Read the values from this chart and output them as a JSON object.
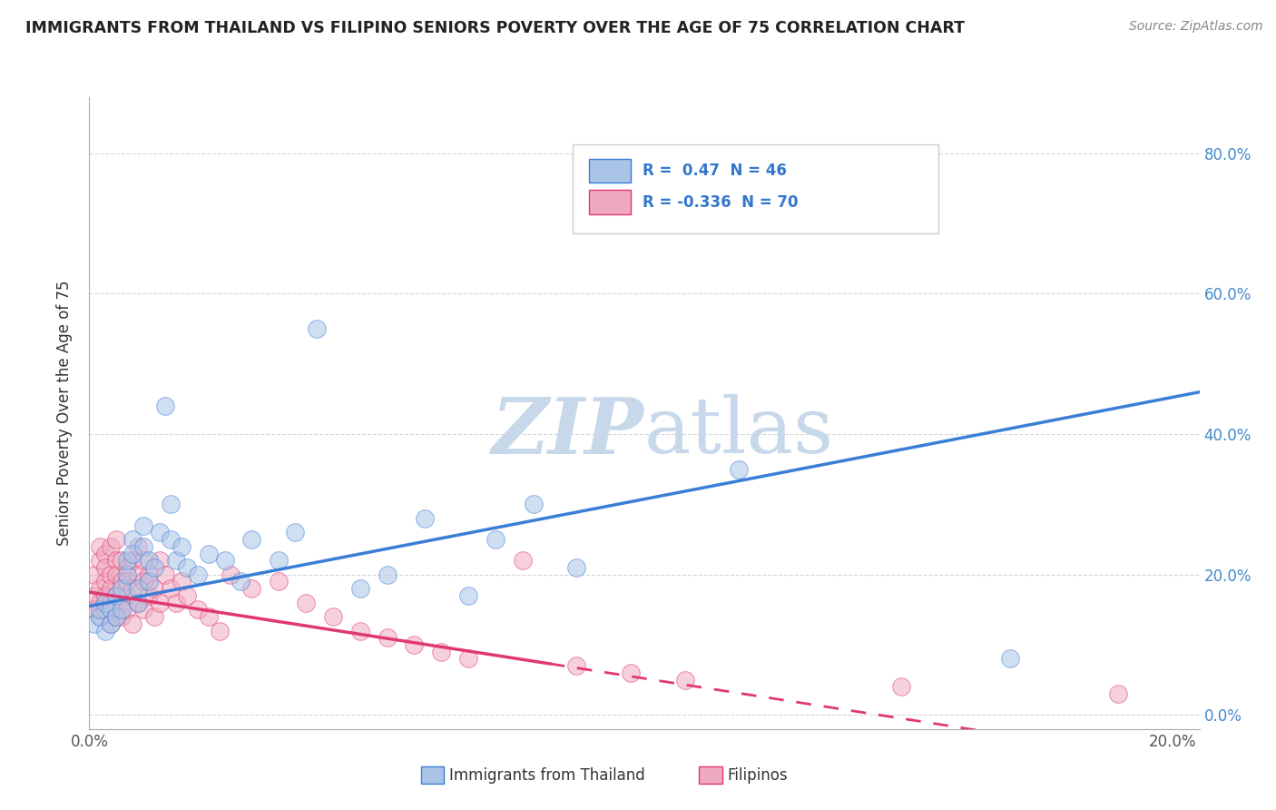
{
  "title": "IMMIGRANTS FROM THAILAND VS FILIPINO SENIORS POVERTY OVER THE AGE OF 75 CORRELATION CHART",
  "source": "Source: ZipAtlas.com",
  "ylabel": "Seniors Poverty Over the Age of 75",
  "xlim": [
    0.0,
    0.205
  ],
  "ylim": [
    -0.02,
    0.88
  ],
  "r_thailand": 0.47,
  "n_thailand": 46,
  "r_filipinos": -0.336,
  "n_filipinos": 70,
  "color_thailand": "#aac4e8",
  "color_filipinos": "#f0aac0",
  "line_color_thailand": "#3a7fd5",
  "line_color_filipinos": "#e03870",
  "watermark_zip": "ZIP",
  "watermark_atlas": "atlas",
  "watermark_color": "#c8d8eb",
  "background_color": "#ffffff",
  "thailand_x": [
    0.001,
    0.002,
    0.002,
    0.003,
    0.003,
    0.004,
    0.004,
    0.005,
    0.005,
    0.006,
    0.006,
    0.007,
    0.007,
    0.008,
    0.008,
    0.009,
    0.009,
    0.01,
    0.01,
    0.011,
    0.011,
    0.012,
    0.013,
    0.014,
    0.015,
    0.015,
    0.016,
    0.017,
    0.018,
    0.02,
    0.022,
    0.025,
    0.028,
    0.03,
    0.035,
    0.038,
    0.042,
    0.05,
    0.055,
    0.062,
    0.07,
    0.075,
    0.082,
    0.09,
    0.12,
    0.17
  ],
  "thailand_y": [
    0.13,
    0.14,
    0.15,
    0.12,
    0.16,
    0.15,
    0.13,
    0.17,
    0.14,
    0.18,
    0.15,
    0.2,
    0.22,
    0.25,
    0.23,
    0.16,
    0.18,
    0.27,
    0.24,
    0.19,
    0.22,
    0.21,
    0.26,
    0.44,
    0.3,
    0.25,
    0.22,
    0.24,
    0.21,
    0.2,
    0.23,
    0.22,
    0.19,
    0.25,
    0.22,
    0.26,
    0.55,
    0.18,
    0.2,
    0.28,
    0.17,
    0.25,
    0.3,
    0.21,
    0.35,
    0.08
  ],
  "filipinos_x": [
    0.001,
    0.001,
    0.001,
    0.002,
    0.002,
    0.002,
    0.002,
    0.002,
    0.003,
    0.003,
    0.003,
    0.003,
    0.003,
    0.004,
    0.004,
    0.004,
    0.004,
    0.004,
    0.005,
    0.005,
    0.005,
    0.005,
    0.005,
    0.006,
    0.006,
    0.006,
    0.006,
    0.007,
    0.007,
    0.007,
    0.007,
    0.008,
    0.008,
    0.008,
    0.009,
    0.009,
    0.009,
    0.01,
    0.01,
    0.01,
    0.011,
    0.011,
    0.012,
    0.012,
    0.013,
    0.013,
    0.014,
    0.015,
    0.016,
    0.017,
    0.018,
    0.02,
    0.022,
    0.024,
    0.026,
    0.03,
    0.035,
    0.04,
    0.045,
    0.05,
    0.055,
    0.06,
    0.065,
    0.07,
    0.08,
    0.09,
    0.1,
    0.11,
    0.15,
    0.19
  ],
  "filipinos_y": [
    0.17,
    0.2,
    0.15,
    0.22,
    0.18,
    0.14,
    0.24,
    0.16,
    0.19,
    0.23,
    0.15,
    0.21,
    0.17,
    0.2,
    0.16,
    0.24,
    0.13,
    0.18,
    0.22,
    0.17,
    0.2,
    0.14,
    0.25,
    0.19,
    0.16,
    0.22,
    0.14,
    0.21,
    0.17,
    0.19,
    0.15,
    0.18,
    0.22,
    0.13,
    0.2,
    0.16,
    0.24,
    0.19,
    0.15,
    0.22,
    0.17,
    0.2,
    0.18,
    0.14,
    0.22,
    0.16,
    0.2,
    0.18,
    0.16,
    0.19,
    0.17,
    0.15,
    0.14,
    0.12,
    0.2,
    0.18,
    0.19,
    0.16,
    0.14,
    0.12,
    0.11,
    0.1,
    0.09,
    0.08,
    0.22,
    0.07,
    0.06,
    0.05,
    0.04,
    0.03
  ]
}
